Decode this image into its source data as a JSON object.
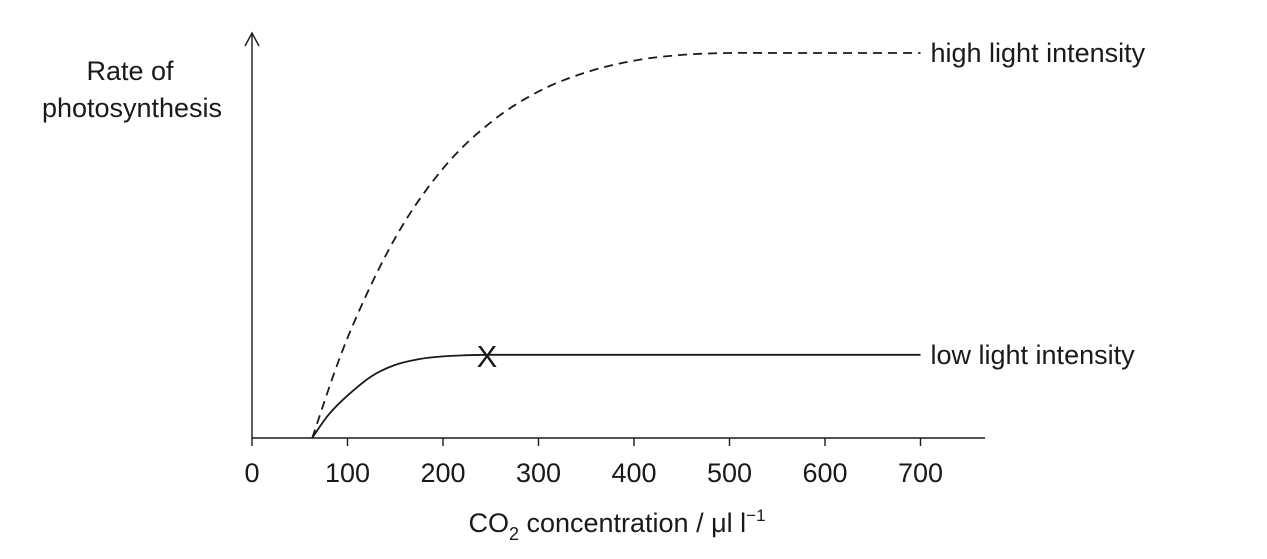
{
  "chart_data": {
    "type": "line",
    "ylabel_lines": [
      "Rate of",
      "photosynthesis"
    ],
    "xlabel": {
      "prefix": "CO",
      "subscript": "2",
      "middle": " concentration / μl l",
      "superscript": "−1"
    },
    "x_ticks": [
      "0",
      "100",
      "200",
      "300",
      "400",
      "500",
      "600",
      "700"
    ],
    "xlim": [
      0,
      770
    ],
    "ylim": [
      0,
      1
    ],
    "grid": false,
    "series": [
      {
        "name": "high light intensity",
        "style": "dashed",
        "x": [
          63,
          100,
          150,
          200,
          250,
          300,
          350,
          400,
          450,
          500,
          550,
          600,
          650,
          700
        ],
        "y": [
          0,
          0.26,
          0.52,
          0.7,
          0.82,
          0.9,
          0.95,
          0.98,
          0.995,
          1.0,
          1.0,
          1.0,
          1.0,
          1.0
        ]
      },
      {
        "name": "low light intensity",
        "style": "solid",
        "x": [
          63,
          80,
          100,
          125,
          150,
          175,
          200,
          225,
          250,
          300,
          400,
          500,
          600,
          700
        ],
        "y": [
          0,
          0.06,
          0.11,
          0.16,
          0.19,
          0.205,
          0.212,
          0.215,
          0.216,
          0.216,
          0.216,
          0.216,
          0.216,
          0.216
        ]
      }
    ],
    "annotations": [
      {
        "text": "X",
        "x": 246,
        "y": 0.216
      }
    ]
  }
}
